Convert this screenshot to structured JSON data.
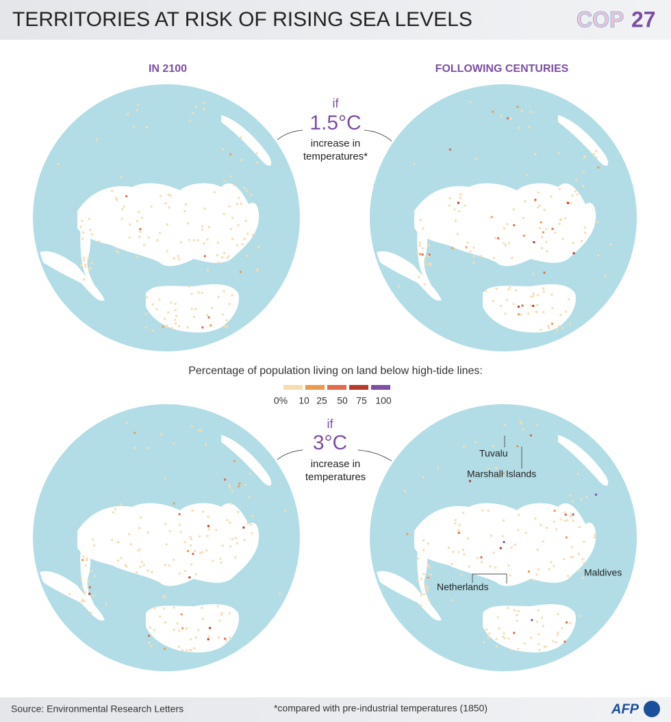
{
  "header": {
    "title": "TERRITORIES AT RISK OF RISING SEA LEVELS",
    "logo": "COP",
    "logo_number": "27"
  },
  "columns": [
    "IN 2100",
    "FOLLOWING CENTURIES"
  ],
  "scenarios": [
    {
      "if": "if",
      "temp": "1.5°C",
      "text": [
        "increase in",
        "temperatures*"
      ]
    },
    {
      "if": "if",
      "temp": "3°C",
      "text": [
        "increase in",
        "temperatures"
      ]
    }
  ],
  "labels": [
    "Tuvalu",
    "Marshall Islands",
    "Netherlands",
    "Maldives"
  ],
  "legend": {
    "title": "Percentage of population living on land below high-tide lines:",
    "ticks": [
      {
        "value": 0,
        "label": "0%"
      },
      10,
      25,
      50,
      75,
      100
    ],
    "colors": [
      "#f7dcb0",
      "#ec9a50",
      "#de6b4e",
      "#b83a2c",
      "#7e4fa4"
    ]
  },
  "footer": {
    "source": "Source: Environmental Research Letters",
    "note": "*compared with pre-industrial temperatures (1850)",
    "brand": "AFP"
  }
}
